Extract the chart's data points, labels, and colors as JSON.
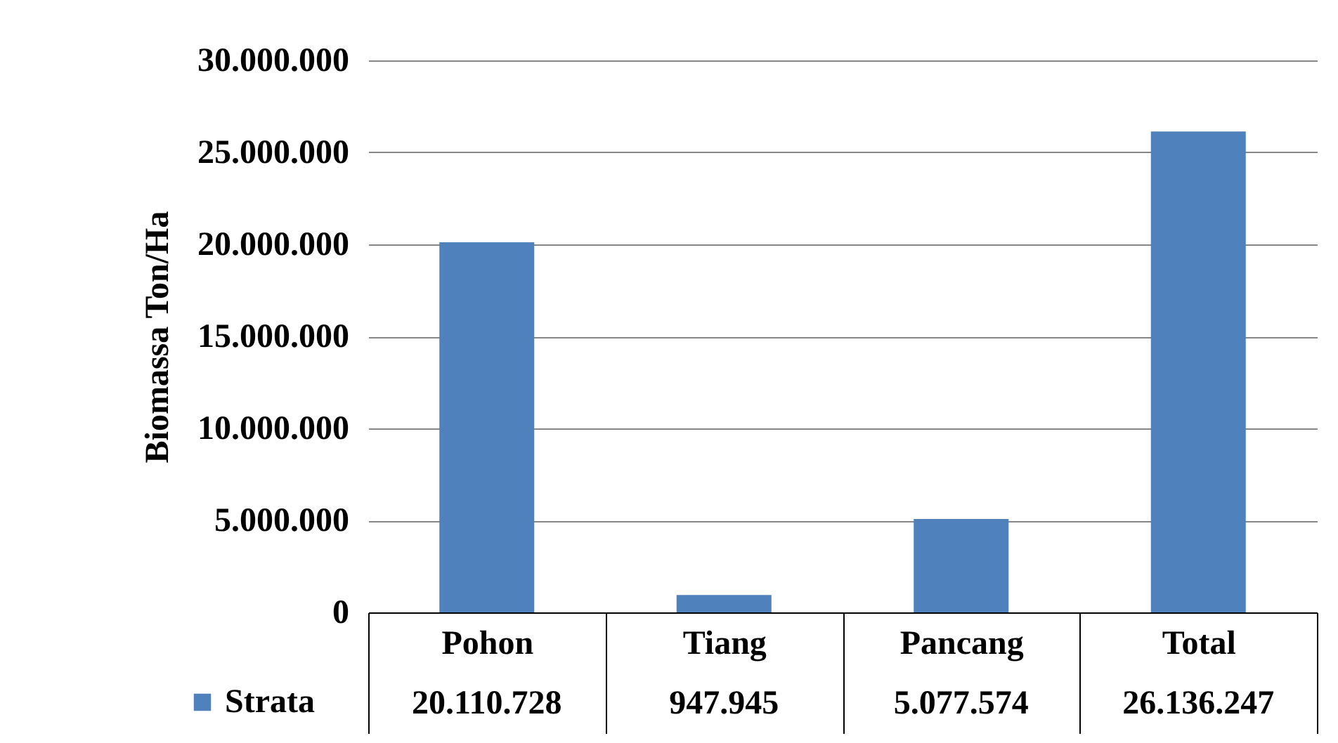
{
  "chart_data": {
    "type": "bar",
    "ylabel": "Biomassa Ton/Ha",
    "categories": [
      "Pohon",
      "Tiang",
      "Pancang",
      "Total"
    ],
    "series": [
      {
        "name": "Strata",
        "color": "#4f81bd",
        "values": [
          20110728,
          947945,
          5077574,
          26136247
        ],
        "value_labels": [
          "20.110.728",
          "947.945",
          "5.077.574",
          "26.136.247"
        ]
      }
    ],
    "ylim": [
      0,
      30000000
    ],
    "yticks": [
      {
        "value": 0,
        "label": "0"
      },
      {
        "value": 5000000,
        "label": "5.000.000"
      },
      {
        "value": 10000000,
        "label": "10.000.000"
      },
      {
        "value": 15000000,
        "label": "15.000.000"
      },
      {
        "value": 20000000,
        "label": "20.000.000"
      },
      {
        "value": 25000000,
        "label": "25.000.000"
      },
      {
        "value": 30000000,
        "label": "30.000.000"
      }
    ],
    "grid": "y",
    "legend": "bottom left"
  }
}
